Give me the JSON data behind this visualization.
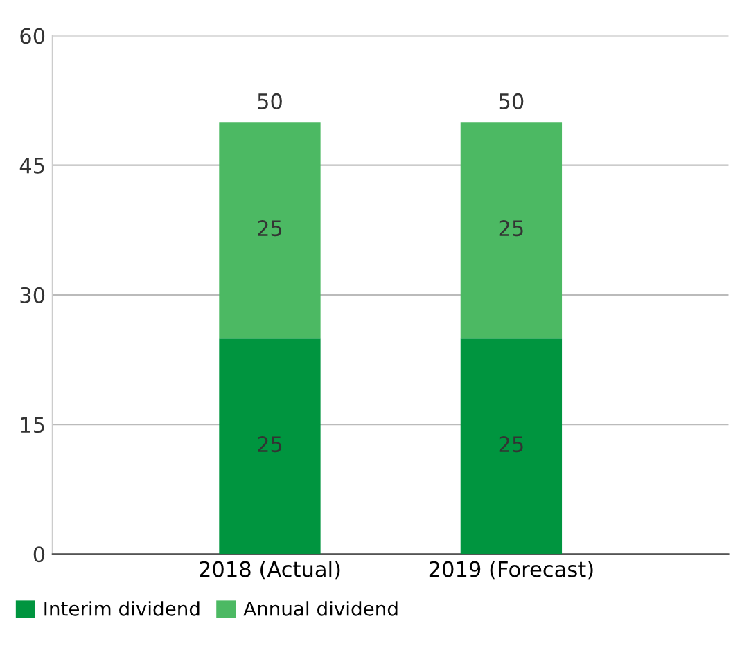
{
  "chart_data": {
    "type": "bar",
    "stacked": true,
    "categories": [
      "2018 (Actual)",
      "2019 (Forecast)"
    ],
    "series": [
      {
        "name": "Interim dividend",
        "color": "#00953f",
        "values": [
          25,
          25
        ]
      },
      {
        "name": "Annual dividend",
        "color": "#4cb963",
        "values": [
          25,
          25
        ]
      }
    ],
    "data_labels": true,
    "totals": [
      "50",
      "50"
    ],
    "ylim": [
      0,
      60
    ],
    "yticks": [
      0,
      15,
      30,
      45,
      60
    ],
    "grid": "y",
    "legend": "bottom left"
  }
}
